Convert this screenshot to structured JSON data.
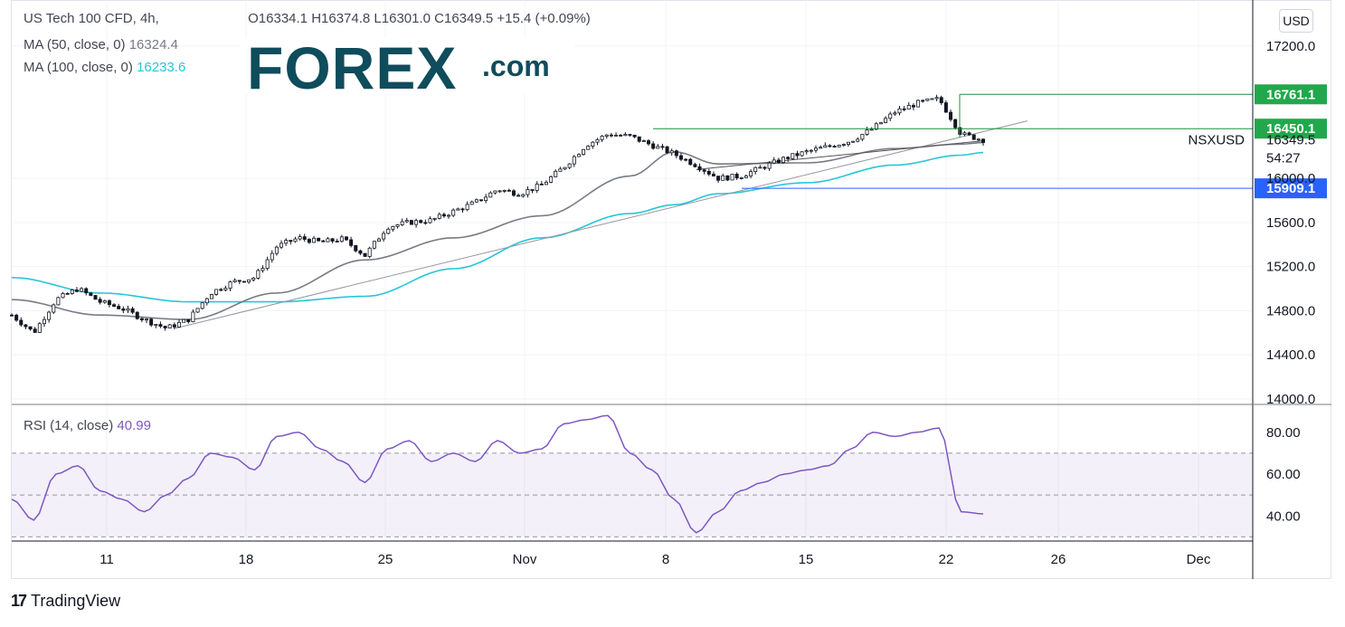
{
  "header": {
    "symbol": "US Tech 100 CFD, 4h,",
    "ohlc": "O16334.1  H16374.8  L16301.0  C16349.5  +15.4 (+0.09%)",
    "ma50_label": "MA (50, close, 0)",
    "ma50_value": "16324.4",
    "ma100_label": "MA (100, close, 0)",
    "ma100_value": "16233.6",
    "rsi_label": "RSI (14, close)",
    "rsi_value": "40.99"
  },
  "logo": {
    "text": "FOREX",
    "suffix": ".com"
  },
  "currency_badge": "USD",
  "price_labels": {
    "level_high": "16761.1",
    "level_mid": "16450.1",
    "symbol_tag": "NSXUSD",
    "last_price": "16349.5",
    "countdown": "54:27",
    "level_low": "15909.1"
  },
  "brand": {
    "icon": "17",
    "name": "TradingView"
  },
  "colors": {
    "up": "#26a69a",
    "down": "#ef5350",
    "candle": "#131722",
    "ma50": "#787b86",
    "ma100": "#26c6da",
    "rsi": "#7e57c2",
    "level_green": "#1e8f3e",
    "level_blue": "#2962ff"
  },
  "chart_data": [
    {
      "type": "line",
      "title": "US Tech 100 CFD, 4h",
      "y_axis_ticks": [
        14000,
        14400,
        14800,
        15200,
        15600,
        16000,
        17200
      ],
      "ylim": [
        13950,
        17600
      ],
      "x_axis_ticks": [
        "11",
        "18",
        "25",
        "Nov",
        "8",
        "15",
        "22",
        "26",
        "Dec"
      ],
      "grid": true,
      "series": [
        {
          "name": "NSXUSD close",
          "points": [
            [
              0,
              14760
            ],
            [
              1,
              14600
            ],
            [
              2,
              14900
            ],
            [
              3,
              15000
            ],
            [
              4,
              14880
            ],
            [
              5,
              14820
            ],
            [
              6,
              14720
            ],
            [
              7,
              14640
            ],
            [
              8,
              14720
            ],
            [
              9,
              14960
            ],
            [
              10,
              15060
            ],
            [
              11,
              15100
            ],
            [
              12,
              15380
            ],
            [
              13,
              15460
            ],
            [
              14,
              15420
            ],
            [
              15,
              15450
            ],
            [
              16,
              15300
            ],
            [
              17,
              15560
            ],
            [
              18,
              15600
            ],
            [
              19,
              15620
            ],
            [
              20,
              15700
            ],
            [
              21,
              15780
            ],
            [
              22,
              15900
            ],
            [
              23,
              15860
            ],
            [
              24,
              15940
            ],
            [
              25,
              16100
            ],
            [
              26,
              16300
            ],
            [
              27,
              16400
            ],
            [
              28,
              16380
            ],
            [
              29,
              16300
            ],
            [
              30,
              16220
            ],
            [
              31,
              16120
            ],
            [
              32,
              16000
            ],
            [
              33,
              16020
            ],
            [
              34,
              16100
            ],
            [
              35,
              16180
            ],
            [
              36,
              16240
            ],
            [
              37,
              16290
            ],
            [
              38,
              16340
            ],
            [
              39,
              16450
            ],
            [
              40,
              16600
            ],
            [
              41,
              16680
            ],
            [
              42,
              16720
            ],
            [
              43,
              16400
            ],
            [
              44,
              16349.5
            ]
          ]
        },
        {
          "name": "MA (50, close, 0)",
          "points": [
            [
              0,
              14900
            ],
            [
              4,
              14760
            ],
            [
              8,
              14720
            ],
            [
              12,
              14960
            ],
            [
              16,
              15260
            ],
            [
              20,
              15460
            ],
            [
              24,
              15660
            ],
            [
              28,
              16020
            ],
            [
              30,
              16240
            ],
            [
              32,
              16130
            ],
            [
              36,
              16140
            ],
            [
              40,
              16270
            ],
            [
              43,
              16310
            ],
            [
              44,
              16324.4
            ]
          ]
        },
        {
          "name": "MA (100, close, 0)",
          "points": [
            [
              0,
              15100
            ],
            [
              4,
              14960
            ],
            [
              8,
              14880
            ],
            [
              12,
              14880
            ],
            [
              16,
              14930
            ],
            [
              20,
              15180
            ],
            [
              24,
              15460
            ],
            [
              28,
              15680
            ],
            [
              30,
              15760
            ],
            [
              32,
              15860
            ],
            [
              36,
              15960
            ],
            [
              40,
              16120
            ],
            [
              43,
              16210
            ],
            [
              44,
              16233.6
            ]
          ]
        }
      ],
      "annotations": [
        {
          "type": "horizontal_level",
          "value": 16761.1
        },
        {
          "type": "horizontal_level",
          "value": 16450.1
        },
        {
          "type": "horizontal_level",
          "value": 15909.1
        }
      ]
    },
    {
      "type": "line",
      "title": "RSI (14, close)",
      "y_axis_ticks": [
        40,
        60,
        80
      ],
      "ylim": [
        28,
        92
      ],
      "band": [
        30,
        70
      ],
      "series": [
        {
          "name": "RSI (14, close)",
          "points": [
            [
              0,
              48
            ],
            [
              1,
              38
            ],
            [
              2,
              60
            ],
            [
              3,
              64
            ],
            [
              4,
              52
            ],
            [
              5,
              48
            ],
            [
              6,
              42
            ],
            [
              7,
              50
            ],
            [
              8,
              58
            ],
            [
              9,
              70
            ],
            [
              10,
              68
            ],
            [
              11,
              62
            ],
            [
              12,
              78
            ],
            [
              13,
              80
            ],
            [
              14,
              72
            ],
            [
              15,
              66
            ],
            [
              16,
              56
            ],
            [
              17,
              72
            ],
            [
              18,
              76
            ],
            [
              19,
              66
            ],
            [
              20,
              70
            ],
            [
              21,
              66
            ],
            [
              22,
              76
            ],
            [
              23,
              70
            ],
            [
              24,
              72
            ],
            [
              25,
              84
            ],
            [
              26,
              86
            ],
            [
              27,
              88
            ],
            [
              28,
              70
            ],
            [
              29,
              62
            ],
            [
              30,
              48
            ],
            [
              31,
              32
            ],
            [
              32,
              42
            ],
            [
              33,
              52
            ],
            [
              34,
              56
            ],
            [
              35,
              60
            ],
            [
              36,
              62
            ],
            [
              37,
              64
            ],
            [
              38,
              72
            ],
            [
              39,
              80
            ],
            [
              40,
              78
            ],
            [
              41,
              80
            ],
            [
              42,
              82
            ],
            [
              43,
              42
            ],
            [
              44,
              40.99
            ]
          ]
        }
      ]
    }
  ]
}
